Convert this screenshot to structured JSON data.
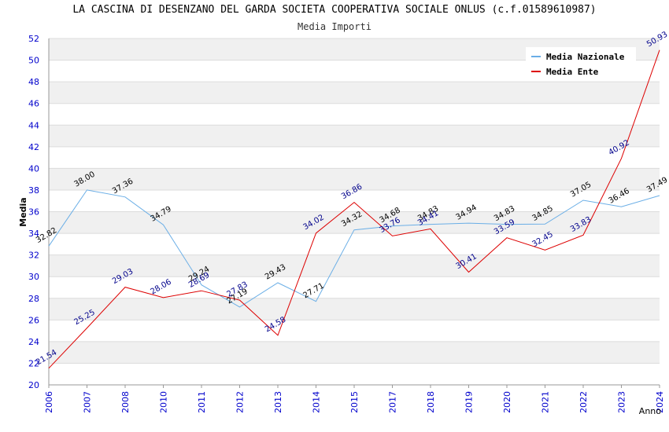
{
  "chart_data": {
    "type": "line",
    "title": "LA CASCINA DI DESENZANO DEL GARDA SOCIETA COOPERATIVA SOCIALE ONLUS (c.f.01589610987)",
    "subtitle": "Media Importi",
    "xlabel": "Anno",
    "ylabel": "Media",
    "ylim": [
      20,
      52
    ],
    "yticks": [
      "20",
      "22",
      "24",
      "26",
      "28",
      "30",
      "32",
      "34",
      "36",
      "38",
      "40",
      "42",
      "44",
      "46",
      "48",
      "50",
      "52"
    ],
    "categories": [
      "2006",
      "2007",
      "2008",
      "2010",
      "2011",
      "2012",
      "2013",
      "2014",
      "2015",
      "2017",
      "2018",
      "2019",
      "2020",
      "2021",
      "2022",
      "2023",
      "2024"
    ],
    "series": [
      {
        "name": "Media Nazionale",
        "color": "#6aaee6",
        "label_color": "#000000",
        "values": [
          32.82,
          38.0,
          37.36,
          34.79,
          29.24,
          27.19,
          29.43,
          27.71,
          34.32,
          34.68,
          34.83,
          34.94,
          34.83,
          34.85,
          37.05,
          36.46,
          37.49
        ],
        "labels": [
          "32.82",
          "38.00",
          "37.36",
          "34.79",
          "29.24",
          "27.19",
          "29.43",
          "27.71",
          "34.32",
          "34.68",
          "34.83",
          "34.94",
          "34.83",
          "34.85",
          "37.05",
          "36.46",
          "37.49"
        ]
      },
      {
        "name": "Media Ente",
        "color": "#dd0000",
        "label_color": "#00008b",
        "values": [
          21.54,
          25.25,
          29.03,
          28.06,
          28.69,
          27.83,
          24.58,
          34.02,
          36.86,
          33.76,
          34.41,
          30.41,
          33.59,
          32.45,
          33.83,
          40.92,
          50.93
        ],
        "labels": [
          "21.54",
          "25.25",
          "29.03",
          "28.06",
          "28.69",
          "27.83",
          "24.58",
          "34.02",
          "36.86",
          "33.76",
          "34.41",
          "30.41",
          "33.59",
          "32.45",
          "33.83",
          "40.92",
          "50.93"
        ]
      }
    ],
    "grid": true,
    "legend_position": "top-right"
  }
}
